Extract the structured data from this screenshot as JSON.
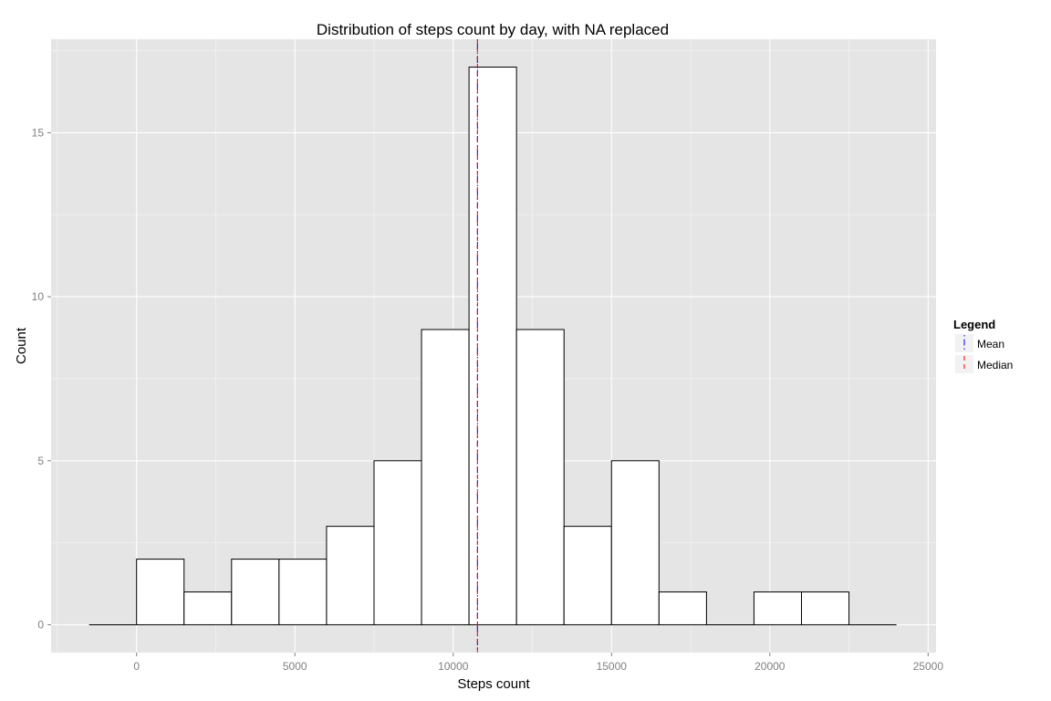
{
  "chart_data": {
    "type": "bar",
    "subtype": "histogram",
    "title": "Distribution of steps count by day, with NA replaced",
    "xlabel": "Steps count",
    "ylabel": "Count",
    "xlim": [
      -2700,
      25250
    ],
    "ylim": [
      -0.85,
      17.85
    ],
    "x_ticks": [
      0,
      5000,
      10000,
      15000,
      20000,
      25000
    ],
    "x_tick_labels": [
      "0",
      "5000",
      "10000",
      "15000",
      "20000",
      "25000"
    ],
    "y_ticks": [
      0,
      5,
      10,
      15
    ],
    "y_tick_labels": [
      "0",
      "5",
      "10",
      "15"
    ],
    "bins": [
      {
        "x0": -1500,
        "x1": 0,
        "count": 0
      },
      {
        "x0": 0,
        "x1": 1500,
        "count": 2
      },
      {
        "x0": 1500,
        "x1": 3000,
        "count": 1
      },
      {
        "x0": 3000,
        "x1": 4500,
        "count": 2
      },
      {
        "x0": 4500,
        "x1": 6000,
        "count": 2
      },
      {
        "x0": 6000,
        "x1": 7500,
        "count": 3
      },
      {
        "x0": 7500,
        "x1": 9000,
        "count": 5
      },
      {
        "x0": 9000,
        "x1": 10500,
        "count": 9
      },
      {
        "x0": 10500,
        "x1": 12000,
        "count": 17
      },
      {
        "x0": 12000,
        "x1": 13500,
        "count": 9
      },
      {
        "x0": 13500,
        "x1": 15000,
        "count": 3
      },
      {
        "x0": 15000,
        "x1": 16500,
        "count": 5
      },
      {
        "x0": 16500,
        "x1": 18000,
        "count": 1
      },
      {
        "x0": 18000,
        "x1": 19500,
        "count": 0
      },
      {
        "x0": 19500,
        "x1": 21000,
        "count": 1
      },
      {
        "x0": 21000,
        "x1": 22500,
        "count": 1
      },
      {
        "x0": 22500,
        "x1": 24000,
        "count": 0
      }
    ],
    "vlines": [
      {
        "name": "Mean",
        "x": 10766,
        "color": "#0000ff",
        "dash": "dotdash"
      },
      {
        "name": "Median",
        "x": 10766,
        "color": "#ff0000",
        "dash": "dashed"
      }
    ],
    "legend": {
      "title": "Legend",
      "position": "right",
      "items": [
        "Mean",
        "Median"
      ]
    },
    "colors": {
      "panel": "#e5e5e5",
      "grid_major": "#ffffff",
      "grid_minor": "#f2f2f2",
      "bar_fill": "#ffffff",
      "bar_stroke": "#000000"
    },
    "grid": true
  }
}
